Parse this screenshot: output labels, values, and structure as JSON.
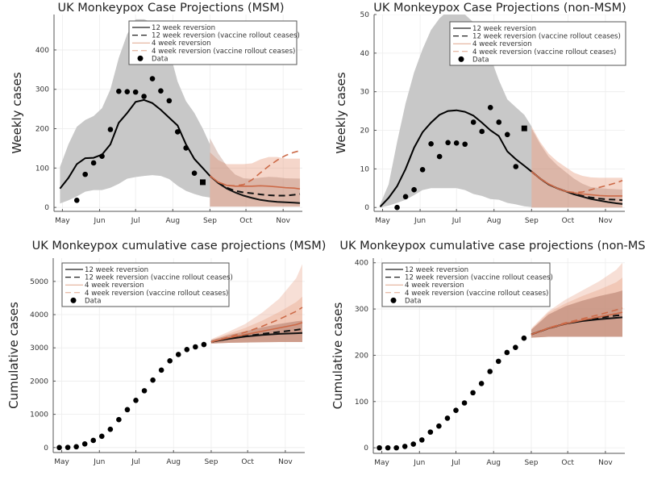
{
  "x_ticks": [
    {
      "label": "May",
      "day": 0
    },
    {
      "label": "Jun",
      "day": 31
    },
    {
      "label": "Jul",
      "day": 61
    },
    {
      "label": "Aug",
      "day": 92
    },
    {
      "label": "Sep",
      "day": 123
    },
    {
      "label": "Oct",
      "day": 153
    },
    {
      "label": "Nov",
      "day": 184
    }
  ],
  "legend": [
    {
      "label": "12 week reversion",
      "style": "solid",
      "color": "#000000"
    },
    {
      "label": "12 week reversion (vaccine rollout ceases)",
      "style": "dashed",
      "color": "#1a1a1a"
    },
    {
      "label": "4 week reversion",
      "style": "solid",
      "color": "#d9805e"
    },
    {
      "label": "4 week reversion (vaccine rollout ceases)",
      "style": "dashed",
      "color": "#d9805e"
    },
    {
      "label": "Data",
      "style": "marker",
      "color": "#000000"
    }
  ],
  "colors": {
    "fit_band": "#c8c8c8",
    "proj_band": "#e9a48a",
    "proj_band_dark": "#b07a6a",
    "line_12wk": "#000000",
    "line_4wk": "#cc6a48",
    "grid": "#ececec",
    "axis": "#555555"
  },
  "chart_data": [
    {
      "id": "weekly-msm",
      "type": "line",
      "title": "UK Monkeypox Case Projections (MSM)",
      "xlabel": "",
      "ylabel": "Weekly cases",
      "xlim": [
        -7,
        200
      ],
      "ylim": [
        -10,
        490
      ],
      "yticks": [
        0,
        100,
        200,
        300,
        400
      ],
      "grid": true,
      "legend_position": "top-right",
      "data": {
        "x": [
          12,
          19,
          26,
          33,
          40,
          47,
          54,
          61,
          68,
          75,
          82,
          89,
          96,
          103,
          110
        ],
        "y": [
          18,
          84,
          113,
          130,
          198,
          295,
          294,
          293,
          282,
          327,
          296,
          271,
          192,
          151,
          87
        ]
      },
      "data_last_incomplete": {
        "x": 117,
        "y": 64
      },
      "fit_median": {
        "x": [
          -2,
          5,
          12,
          19,
          26,
          33,
          40,
          47,
          54,
          61,
          68,
          75,
          82,
          89,
          96,
          103,
          110,
          117,
          123
        ],
        "y": [
          48,
          75,
          110,
          125,
          126,
          134,
          160,
          215,
          240,
          268,
          273,
          265,
          248,
          228,
          208,
          160,
          123,
          100,
          80
        ]
      },
      "fit_band": {
        "x": [
          -2,
          5,
          12,
          19,
          26,
          33,
          40,
          47,
          54,
          61,
          68,
          75,
          82,
          89,
          96,
          103,
          110,
          117,
          123
        ],
        "lower": [
          10,
          18,
          28,
          40,
          44,
          44,
          50,
          60,
          73,
          77,
          80,
          82,
          80,
          72,
          55,
          42,
          34,
          28,
          25
        ],
        "upper": [
          103,
          160,
          205,
          222,
          232,
          252,
          300,
          380,
          440,
          478,
          478,
          470,
          440,
          400,
          320,
          270,
          240,
          200,
          160
        ]
      },
      "projection_x": [
        123,
        130,
        137,
        144,
        151,
        158,
        165,
        172,
        179,
        186,
        193,
        198
      ],
      "series": [
        {
          "name": "12 week reversion",
          "style": "solid",
          "values": [
            80,
            62,
            48,
            38,
            30,
            24,
            19,
            16,
            14,
            13,
            12,
            11
          ]
        },
        {
          "name": "12 week reversion (vaccine rollout ceases)",
          "style": "dashed",
          "values": [
            80,
            62,
            50,
            42,
            38,
            36,
            33,
            31,
            30,
            30,
            32,
            34
          ]
        },
        {
          "name": "4 week reversion",
          "style": "solid",
          "values": [
            80,
            64,
            56,
            54,
            54,
            54,
            55,
            54,
            52,
            50,
            49,
            47
          ]
        },
        {
          "name": "4 week reversion (vaccine rollout ceases)",
          "style": "dashed",
          "values": [
            80,
            64,
            56,
            55,
            58,
            70,
            88,
            105,
            120,
            132,
            140,
            144
          ]
        }
      ],
      "projection_band": {
        "lower": [
          2,
          2,
          2,
          2,
          2,
          2,
          2,
          2,
          2,
          2,
          2,
          2
        ],
        "upper": [
          140,
          120,
          110,
          110,
          110,
          112,
          122,
          128,
          128,
          124,
          124,
          124
        ]
      }
    },
    {
      "id": "weekly-non-msm",
      "type": "line",
      "title": "UK Monkeypox Case Projections (non-MSM)",
      "xlabel": "",
      "ylabel": "Weekly cases",
      "xlim": [
        -7,
        200
      ],
      "ylim": [
        -1,
        50
      ],
      "yticks": [
        0,
        10,
        20,
        30,
        40,
        50
      ],
      "grid": true,
      "legend_position": "top-right",
      "data": {
        "x": [
          12,
          19,
          26,
          33,
          40,
          47,
          54,
          61,
          68,
          75,
          82,
          89,
          96,
          103,
          110
        ],
        "y": [
          0,
          2.8,
          4.6,
          9.8,
          16.5,
          13.2,
          16.8,
          16.7,
          16.4,
          22.1,
          19.7,
          25.9,
          22.1,
          18.9,
          10.6
        ]
      },
      "data_last_incomplete": {
        "x": 117,
        "y": 20.5
      },
      "fit_median": {
        "x": [
          -2,
          5,
          12,
          19,
          26,
          33,
          40,
          47,
          54,
          61,
          68,
          75,
          82,
          89,
          96,
          103,
          110,
          117,
          123
        ],
        "y": [
          0.2,
          2.5,
          5.5,
          10,
          15.5,
          19.5,
          22,
          24,
          25,
          25.2,
          24.8,
          23.8,
          22,
          20,
          18.5,
          14.5,
          12.5,
          10.8,
          9.3
        ]
      },
      "fit_band": {
        "x": [
          -2,
          5,
          12,
          19,
          26,
          33,
          40,
          47,
          54,
          61,
          68,
          75,
          82,
          89,
          96,
          103,
          110,
          117,
          123
        ],
        "lower": [
          0,
          0.5,
          1.2,
          2,
          3.2,
          4.5,
          5,
          5,
          5,
          5,
          4.5,
          3.5,
          3,
          2.2,
          2,
          1.2,
          0.8,
          0.3,
          0.1
        ],
        "upper": [
          0.8,
          6,
          17,
          27,
          35,
          41,
          46,
          49,
          51,
          51,
          50,
          48,
          44,
          39,
          33,
          28,
          26,
          24,
          21
        ]
      },
      "projection_x": [
        123,
        130,
        137,
        144,
        151,
        158,
        165,
        172,
        179,
        186,
        193,
        198
      ],
      "series": [
        {
          "name": "12 week reversion",
          "style": "solid",
          "values": [
            9.3,
            7.5,
            6,
            5,
            4.2,
            3.4,
            2.8,
            2.2,
            1.8,
            1.4,
            1.1,
            0.9
          ]
        },
        {
          "name": "12 week reversion (vaccine rollout ceases)",
          "style": "dashed",
          "values": [
            9.3,
            7.5,
            6,
            5,
            4.2,
            3.5,
            3,
            2.6,
            2.3,
            2.1,
            2,
            1.9
          ]
        },
        {
          "name": "4 week reversion",
          "style": "solid",
          "values": [
            9.3,
            7.5,
            6.1,
            5,
            4.2,
            3.8,
            3.5,
            3.3,
            3.1,
            3,
            3,
            3
          ]
        },
        {
          "name": "4 week reversion (vaccine rollout ceases)",
          "style": "dashed",
          "values": [
            9.3,
            7.5,
            6.1,
            5,
            4.2,
            3.9,
            4,
            4.6,
            5.2,
            5.8,
            6.4,
            7
          ]
        }
      ],
      "projection_band": {
        "lower": [
          0,
          0,
          0,
          0,
          0,
          0,
          0,
          0,
          0,
          0,
          0,
          0
        ],
        "upper": [
          21,
          17,
          14,
          12,
          10.5,
          9,
          8.2,
          7.8,
          7.7,
          7.7,
          7.7,
          7.7
        ]
      }
    },
    {
      "id": "cumulative-msm",
      "type": "line",
      "title": "UK Monkeypox cumulative case projections (MSM)",
      "xlabel": "",
      "ylabel": "Cumulative cases",
      "xlim": [
        -7,
        200
      ],
      "ylim": [
        -150,
        5700
      ],
      "yticks": [
        0,
        1000,
        2000,
        3000,
        4000,
        5000
      ],
      "grid": true,
      "legend_position": "top-left",
      "data": {
        "x": [
          -2,
          5,
          12,
          19,
          26,
          33,
          40,
          47,
          54,
          61,
          68,
          75,
          82,
          89,
          96,
          103,
          110,
          117
        ],
        "y": [
          0,
          5,
          25,
          110,
          215,
          340,
          550,
          840,
          1140,
          1420,
          1710,
          2030,
          2330,
          2610,
          2800,
          2950,
          3030,
          3100
        ]
      },
      "projection_x": [
        123,
        137,
        151,
        165,
        179,
        193,
        198
      ],
      "series": [
        {
          "name": "12 week reversion",
          "style": "solid",
          "values": [
            3180,
            3270,
            3340,
            3390,
            3420,
            3440,
            3450
          ]
        },
        {
          "name": "12 week reversion (vaccine rollout ceases)",
          "style": "dashed",
          "values": [
            3180,
            3275,
            3350,
            3420,
            3480,
            3540,
            3570
          ]
        },
        {
          "name": "4 week reversion",
          "style": "solid",
          "values": [
            3180,
            3300,
            3400,
            3500,
            3600,
            3700,
            3760
          ]
        },
        {
          "name": "4 week reversion (vaccine rollout ceases)",
          "style": "dashed",
          "values": [
            3180,
            3320,
            3470,
            3650,
            3860,
            4100,
            4220
          ]
        }
      ],
      "projection_bands": [
        {
          "lower": [
            3130,
            3150,
            3160,
            3170,
            3175,
            3175,
            3175
          ],
          "upper": [
            3260,
            3480,
            3720,
            4060,
            4480,
            5100,
            5520
          ]
        },
        {
          "lower": [
            3130,
            3150,
            3160,
            3170,
            3175,
            3175,
            3175
          ],
          "upper": [
            3240,
            3420,
            3600,
            3820,
            4080,
            4380,
            4540
          ]
        },
        {
          "lower": [
            3130,
            3150,
            3160,
            3170,
            3175,
            3175,
            3175
          ],
          "upper": [
            3230,
            3380,
            3500,
            3620,
            3720,
            3800,
            3820
          ]
        }
      ]
    },
    {
      "id": "cumulative-non-msm",
      "type": "line",
      "title": "UK Monkeypox cumulative case projections (non-MSM)",
      "xlabel": "",
      "ylabel": "Cumulative cases",
      "xlim": [
        -7,
        200
      ],
      "ylim": [
        -12,
        410
      ],
      "yticks": [
        0,
        100,
        200,
        300,
        400
      ],
      "grid": true,
      "legend_position": "top-left",
      "data": {
        "x": [
          -2,
          5,
          12,
          19,
          26,
          33,
          40,
          47,
          54,
          61,
          68,
          75,
          82,
          89,
          96,
          103,
          110,
          117
        ],
        "y": [
          0,
          0,
          0,
          3,
          8,
          17,
          34,
          47,
          64,
          81,
          97,
          119,
          139,
          165,
          187,
          206,
          217,
          237
        ]
      },
      "projection_x": [
        123,
        137,
        151,
        165,
        179,
        193,
        198
      ],
      "series": [
        {
          "name": "12 week reversion",
          "style": "solid",
          "values": [
            245,
            258,
            268,
            274,
            278,
            281,
            282
          ]
        },
        {
          "name": "12 week reversion (vaccine rollout ceases)",
          "style": "dashed",
          "values": [
            245,
            258,
            268,
            275,
            281,
            286,
            287
          ]
        },
        {
          "name": "4 week reversion",
          "style": "solid",
          "values": [
            245,
            258,
            268,
            276,
            283,
            290,
            293
          ]
        },
        {
          "name": "4 week reversion (vaccine rollout ceases)",
          "style": "dashed",
          "values": [
            245,
            259,
            270,
            279,
            288,
            298,
            302
          ]
        }
      ],
      "projection_bands": [
        {
          "lower": [
            238,
            240,
            240,
            240,
            240,
            240,
            240
          ],
          "upper": [
            258,
            295,
            320,
            340,
            360,
            385,
            400
          ]
        },
        {
          "lower": [
            238,
            240,
            240,
            240,
            240,
            240,
            240
          ],
          "upper": [
            256,
            292,
            312,
            328,
            342,
            358,
            368
          ]
        },
        {
          "lower": [
            238,
            240,
            240,
            240,
            240,
            240,
            240
          ],
          "upper": [
            255,
            288,
            306,
            318,
            328,
            336,
            340
          ]
        }
      ]
    }
  ]
}
